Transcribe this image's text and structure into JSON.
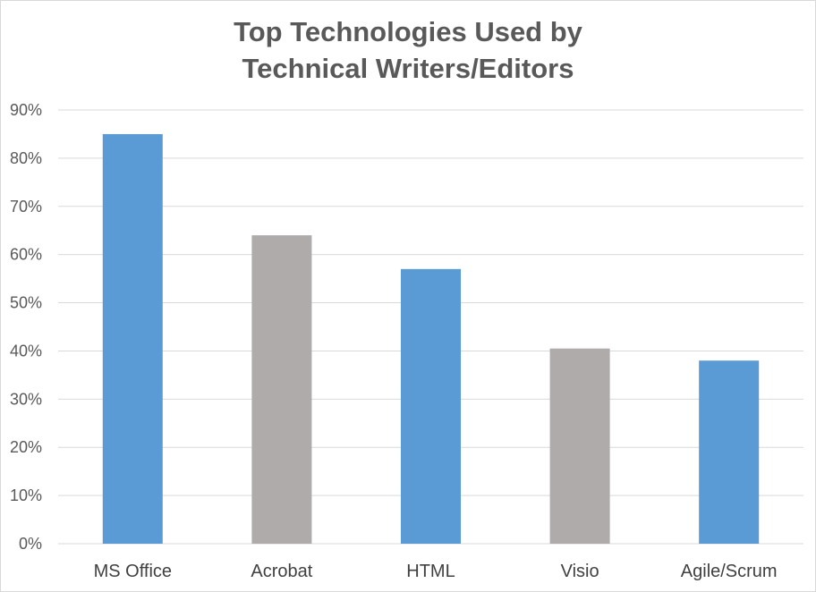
{
  "chart_data": {
    "type": "bar",
    "title": [
      "Top Technologies Used by",
      "Technical Writers/Editors"
    ],
    "categories": [
      "MS Office",
      "Acrobat",
      "HTML",
      "Visio",
      "Agile/Scrum"
    ],
    "values": [
      85,
      64,
      57,
      40.5,
      38
    ],
    "colors": [
      "#5b9bd5",
      "#afabab",
      "#5b9bd5",
      "#afabab",
      "#5b9bd5"
    ],
    "ylim": [
      0,
      90
    ],
    "yticks": [
      "0%",
      "10%",
      "20%",
      "30%",
      "40%",
      "50%",
      "60%",
      "70%",
      "80%",
      "90%"
    ],
    "grid": true,
    "gridline_color": "#d9d9d9",
    "legend": "none"
  }
}
